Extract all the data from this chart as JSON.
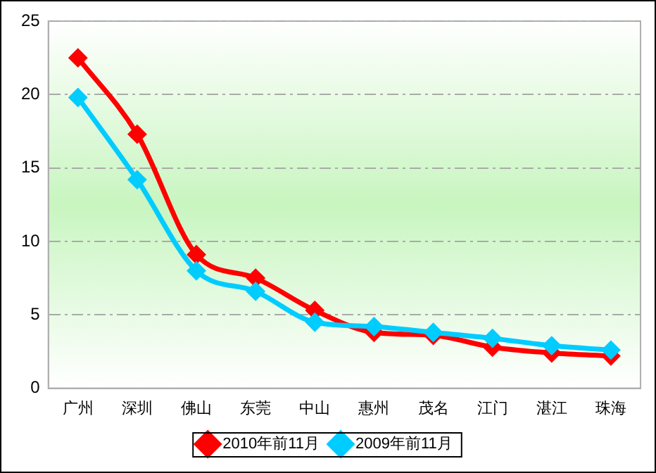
{
  "chart_data": {
    "type": "line",
    "categories": [
      "广州",
      "深圳",
      "佛山",
      "东莞",
      "中山",
      "惠州",
      "茂名",
      "江门",
      "湛江",
      "珠海"
    ],
    "series": [
      {
        "name": "2010年前11月",
        "color": "#ff0000",
        "values": [
          22.5,
          17.3,
          9.1,
          7.5,
          5.3,
          3.8,
          3.6,
          2.8,
          2.4,
          2.2
        ]
      },
      {
        "name": "2009年前11月",
        "color": "#00ccff",
        "values": [
          19.8,
          14.2,
          8.0,
          6.6,
          4.5,
          4.2,
          3.8,
          3.4,
          2.9,
          2.6
        ]
      }
    ],
    "ylim": [
      0,
      25
    ],
    "yticks": [
      0,
      5,
      10,
      15,
      20,
      25
    ],
    "grid": "y",
    "legend": "bottom",
    "marker": "diamond"
  }
}
